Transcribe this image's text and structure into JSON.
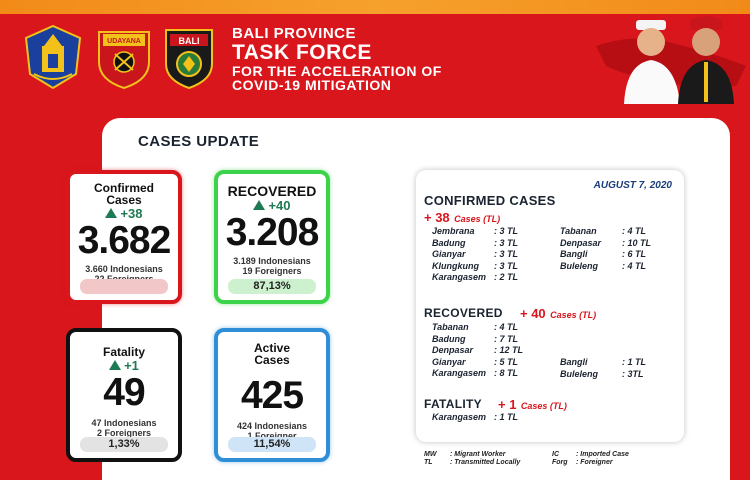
{
  "header": {
    "line1": "BALI PROVINCE",
    "line2": "TASK FORCE",
    "line3": "FOR THE ACCELERATION OF",
    "line4": "COVID-19 MITIGATION",
    "logo_udayana_text": "UDAYANA",
    "logo_bali_text": "BALI"
  },
  "panel_title": "CASES UPDATE",
  "cards": {
    "confirmed": {
      "title1": "Confirmed",
      "title2": "Cases",
      "delta": "+38",
      "value": "3.682",
      "sub1": "3.660 Indonesians",
      "sub2": "22 Foreigners"
    },
    "recovered": {
      "title1": "RECOVERED",
      "delta": "+40",
      "value": "3.208",
      "sub1": "3.189 Indonesians",
      "sub2": "19 Foreigners",
      "pct": "87,13%"
    },
    "fatality": {
      "title1": "Fatality",
      "delta": "+1",
      "value": "49",
      "sub1": "47 Indonesians",
      "sub2": "2 Foreigners",
      "pct": "1,33%"
    },
    "active": {
      "title1": "Active",
      "title2": "Cases",
      "value": "425",
      "sub1": "424 Indonesians",
      "sub2": "1 Foreigner",
      "pct": "11,54%"
    }
  },
  "info": {
    "date": "AUGUST 7, 2020",
    "confirmed_head": "CONFIRMED CASES",
    "confirmed_count": "+ 38",
    "confirmed_unit": "Cases  (TL)",
    "confirmed_left": [
      {
        "name": "Jembrana",
        "val": ": 3 TL"
      },
      {
        "name": "Badung",
        "val": ": 3 TL"
      },
      {
        "name": "Gianyar",
        "val": ": 3 TL"
      },
      {
        "name": "Klungkung",
        "val": ": 3 TL"
      },
      {
        "name": "Karangasem",
        "val": ": 2 TL"
      }
    ],
    "confirmed_right": [
      {
        "name": "Tabanan",
        "val": ": 4 TL"
      },
      {
        "name": "Denpasar",
        "val": ": 10 TL"
      },
      {
        "name": "Bangli",
        "val": ": 6 TL"
      },
      {
        "name": "Buleleng",
        "val": ": 4 TL"
      }
    ],
    "recovered_head": "RECOVERED",
    "recovered_count": "+ 40",
    "recovered_unit": "Cases  (TL)",
    "recovered_left": [
      {
        "name": "Tabanan",
        "val": ": 4 TL"
      },
      {
        "name": "Badung",
        "val": ": 7 TL"
      },
      {
        "name": "Denpasar",
        "val": ": 12 TL"
      },
      {
        "name": "Gianyar",
        "val": ": 5 TL"
      },
      {
        "name": "Karangasem",
        "val": ": 8 TL"
      }
    ],
    "recovered_right": [
      {
        "name": "Bangli",
        "val": ": 1 TL"
      },
      {
        "name": "Buleleng",
        "val": ": 3TL"
      }
    ],
    "fatality_head": "FATALITY",
    "fatality_count": "+ 1",
    "fatality_unit": "Cases  (TL)",
    "fatality_left": [
      {
        "name": "Karangasem",
        "val": ": 1 TL"
      }
    ]
  },
  "legend": {
    "mw_key": "MW",
    "mw_desc": ": Migrant Worker",
    "ic_key": "IC",
    "ic_desc": ": Imported Case",
    "tl_key": "TL",
    "tl_desc": ": Transmitted Locally",
    "forg_key": "Forg",
    "forg_desc": ": Foreigner"
  },
  "colors": {
    "banner": "#d9161c",
    "confirmed_border": "#d9161c",
    "recovered_border": "#3cd24a",
    "fatality_border": "#111111",
    "active_border": "#2f8fd6",
    "delta_green": "#1e7a52"
  }
}
